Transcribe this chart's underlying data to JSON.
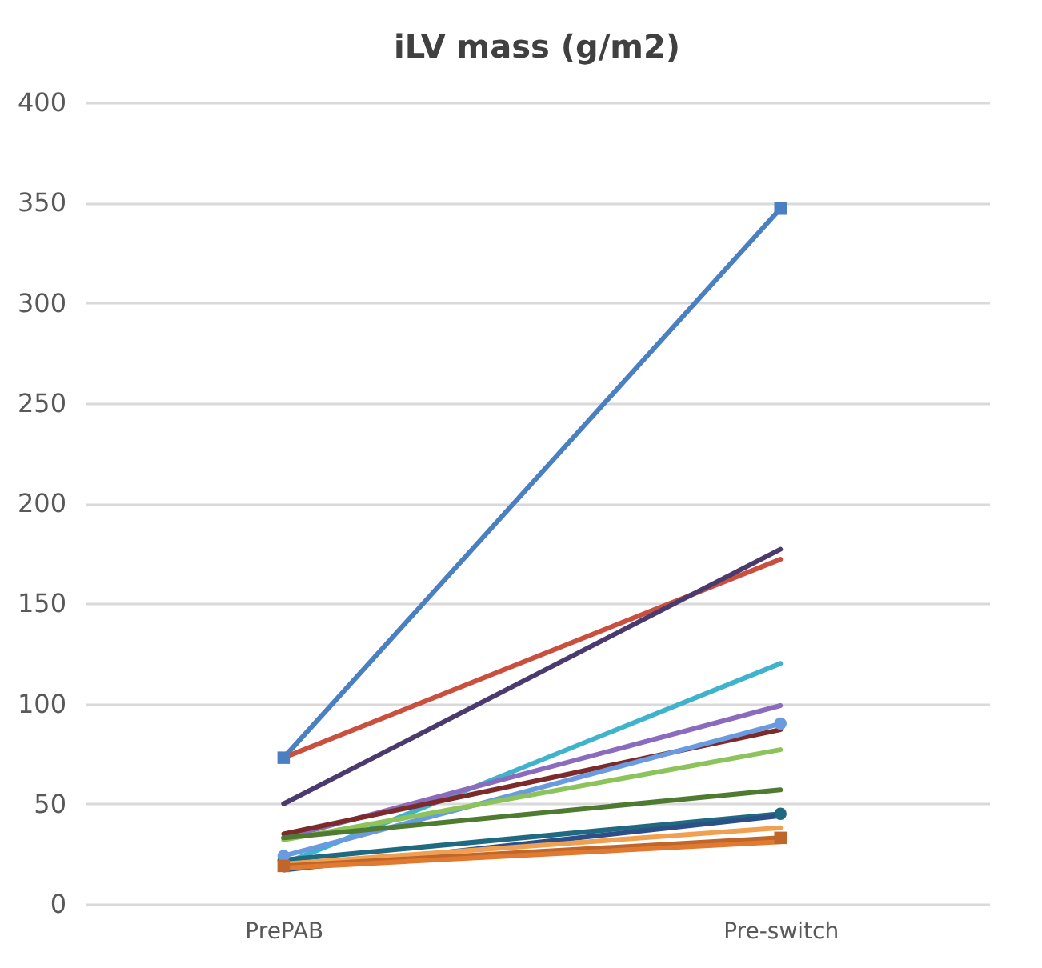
{
  "chart_data": {
    "type": "line",
    "title": "iLV mass (g/m2)",
    "categories": [
      "PrePAB",
      "Pre-switch"
    ],
    "ylim": [
      0,
      400
    ],
    "yticks": [
      0,
      50,
      100,
      150,
      200,
      250,
      300,
      350,
      400
    ],
    "grid": "y",
    "legend": false,
    "line_style": "solid",
    "marker": "none",
    "series": [
      {
        "color": "#4a7fc1",
        "values": [
          73,
          347
        ],
        "marker": "square"
      },
      {
        "color": "#c9503f",
        "values": [
          73,
          172
        ]
      },
      {
        "color": "#4a3a6e",
        "values": [
          50,
          177
        ]
      },
      {
        "color": "#3fb3cc",
        "values": [
          20,
          120
        ]
      },
      {
        "color": "#8a6bbd",
        "values": [
          33,
          99
        ]
      },
      {
        "color": "#7d2a2a",
        "values": [
          35,
          87
        ]
      },
      {
        "color": "#6a9be0",
        "values": [
          24,
          90
        ],
        "marker": "circle"
      },
      {
        "color": "#8cc35a",
        "values": [
          32,
          77
        ]
      },
      {
        "color": "#4e7a32",
        "values": [
          33,
          57
        ]
      },
      {
        "color": "#1f6a80",
        "values": [
          22,
          45
        ],
        "marker": "circle"
      },
      {
        "color": "#2c4f8a",
        "values": [
          17,
          44
        ]
      },
      {
        "color": "#f0a050",
        "values": [
          20,
          38
        ]
      },
      {
        "color": "#c0662a",
        "values": [
          19,
          33
        ],
        "marker": "square"
      },
      {
        "color": "#e07a30",
        "values": [
          18,
          31
        ]
      }
    ]
  }
}
